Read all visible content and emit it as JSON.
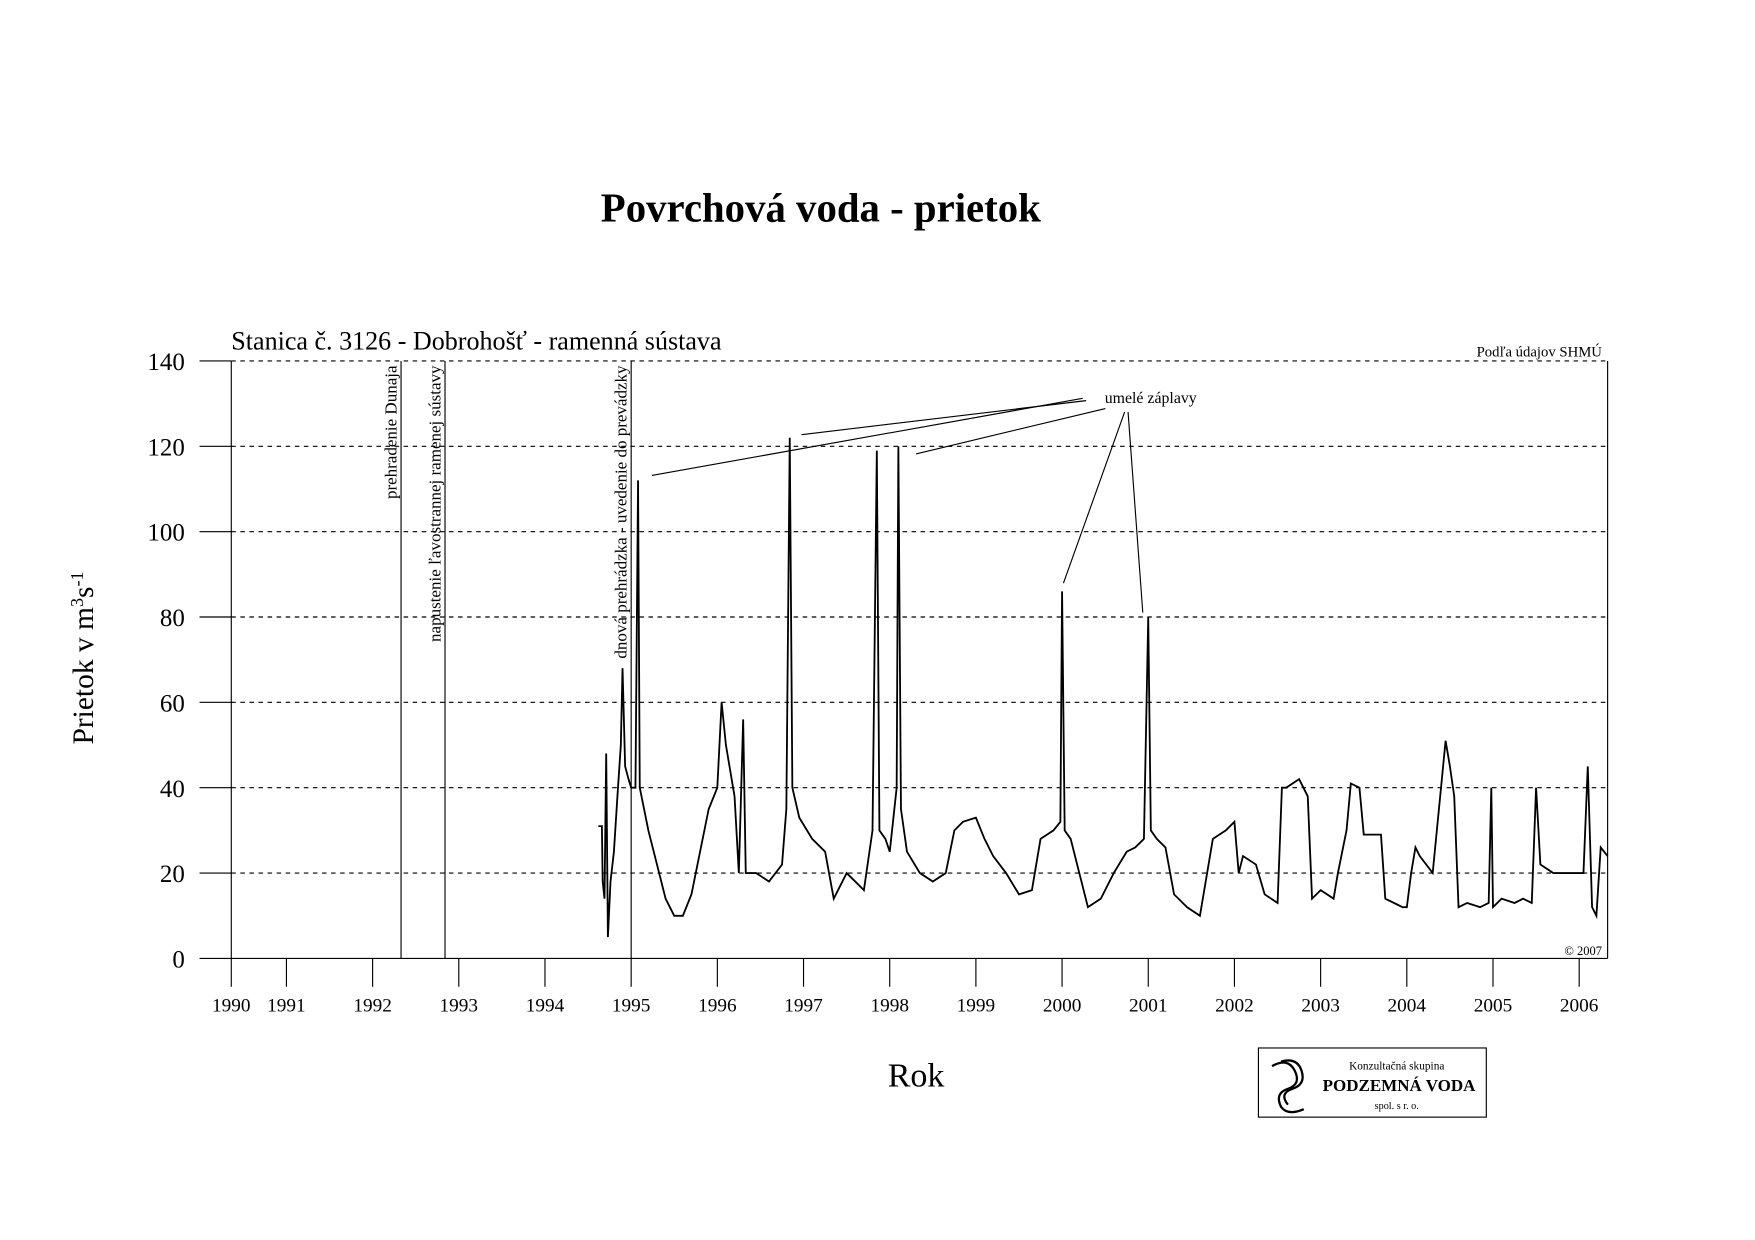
{
  "chart_data": {
    "type": "line",
    "title": "Povrchová voda -  prietok",
    "subtitle": "Stanica č. 3126 - Dobrohošť - ramenná sústava",
    "source": "Podľa údajov SHMÚ",
    "copyright": "© 2007",
    "xlabel": "Rok",
    "ylabel": [
      "Prietok v m",
      "3",
      "s",
      "-1"
    ],
    "annotation": "umelé záplavy",
    "logo": [
      "Konzultačná skupina",
      "PODZEMNÁ VODA",
      "spol. s r. o."
    ],
    "color": "#000000",
    "grid": true,
    "xlim": [
      1990.36,
      2006.33
    ],
    "xticks": [
      {
        "value": 1990.36,
        "label": "1990"
      },
      1991,
      1992,
      1993,
      1994,
      1995,
      1996,
      1997,
      1998,
      1999,
      2000,
      2001,
      2002,
      2003,
      2004,
      2005,
      2006
    ],
    "ylim": [
      0,
      140
    ],
    "yticks": [
      0,
      20,
      40,
      60,
      80,
      100,
      120,
      140
    ],
    "events": [
      {
        "x": 1992.33,
        "label": "prehradenie Dunaja"
      },
      {
        "x": 1992.84,
        "label": "napustenie ľavostrannej ramenej sústavy"
      },
      {
        "x": 1995.0,
        "label": "dnová prehrádzka - uvedenie do prevádzky"
      }
    ],
    "x": [
      1994.62,
      1994.66,
      1994.67,
      1994.69,
      1994.71,
      1994.73,
      1994.76,
      1994.8,
      1994.84,
      1994.88,
      1994.9,
      1994.93,
      1994.97,
      1995.0,
      1995.05,
      1995.08,
      1995.1,
      1995.15,
      1995.2,
      1995.3,
      1995.4,
      1995.5,
      1995.6,
      1995.7,
      1995.8,
      1995.9,
      1996.0,
      1996.05,
      1996.1,
      1996.2,
      1996.25,
      1996.3,
      1996.33,
      1996.45,
      1996.6,
      1996.75,
      1996.8,
      1996.84,
      1996.87,
      1996.95,
      1997.1,
      1997.25,
      1997.35,
      1997.5,
      1997.6,
      1997.7,
      1997.8,
      1997.85,
      1997.88,
      1997.95,
      1998.0,
      1998.08,
      1998.1,
      1998.13,
      1998.2,
      1998.35,
      1998.5,
      1998.65,
      1998.75,
      1998.85,
      1999.0,
      1999.1,
      1999.2,
      1999.35,
      1999.5,
      1999.65,
      1999.75,
      1999.9,
      1999.98,
      2000.0,
      2000.03,
      2000.1,
      2000.2,
      2000.3,
      2000.45,
      2000.6,
      2000.75,
      2000.85,
      2000.95,
      2001.0,
      2001.03,
      2001.1,
      2001.2,
      2001.3,
      2001.45,
      2001.6,
      2001.75,
      2001.9,
      2002.0,
      2002.05,
      2002.1,
      2002.25,
      2002.35,
      2002.5,
      2002.55,
      2002.6,
      2002.75,
      2002.85,
      2002.9,
      2003.0,
      2003.15,
      2003.2,
      2003.3,
      2003.35,
      2003.45,
      2003.5,
      2003.7,
      2003.75,
      2003.95,
      2004.0,
      2004.05,
      2004.1,
      2004.15,
      2004.3,
      2004.45,
      2004.5,
      2004.55,
      2004.6,
      2004.7,
      2004.85,
      2004.95,
      2004.98,
      2005.0,
      2005.1,
      2005.25,
      2005.35,
      2005.45,
      2005.5,
      2005.55,
      2005.7,
      2005.9,
      2006.05,
      2006.1,
      2006.15,
      2006.2,
      2006.25,
      2006.33
    ],
    "values": [
      31,
      31,
      18,
      14,
      48,
      5,
      18,
      25,
      38,
      50,
      68,
      45,
      42,
      40,
      40,
      112,
      40,
      35,
      30,
      22,
      14,
      10,
      10,
      15,
      25,
      35,
      40,
      60,
      50,
      38,
      20,
      56,
      20,
      20,
      18,
      22,
      35,
      122,
      40,
      33,
      28,
      25,
      14,
      20,
      18,
      16,
      30,
      119,
      30,
      28,
      25,
      40,
      120,
      35,
      25,
      20,
      18,
      20,
      30,
      32,
      33,
      28,
      24,
      20,
      15,
      16,
      28,
      30,
      32,
      86,
      30,
      28,
      20,
      12,
      14,
      20,
      25,
      26,
      28,
      80,
      30,
      28,
      26,
      15,
      12,
      10,
      28,
      30,
      32,
      20,
      24,
      22,
      15,
      13,
      40,
      40,
      42,
      38,
      14,
      16,
      14,
      20,
      30,
      41,
      40,
      29,
      29,
      14,
      12,
      12,
      20,
      26,
      24,
      20,
      51,
      45,
      38,
      12,
      13,
      12,
      13,
      40,
      12,
      14,
      13,
      14,
      13,
      40,
      22,
      20,
      20,
      20,
      45,
      12,
      10,
      26,
      24
    ]
  }
}
